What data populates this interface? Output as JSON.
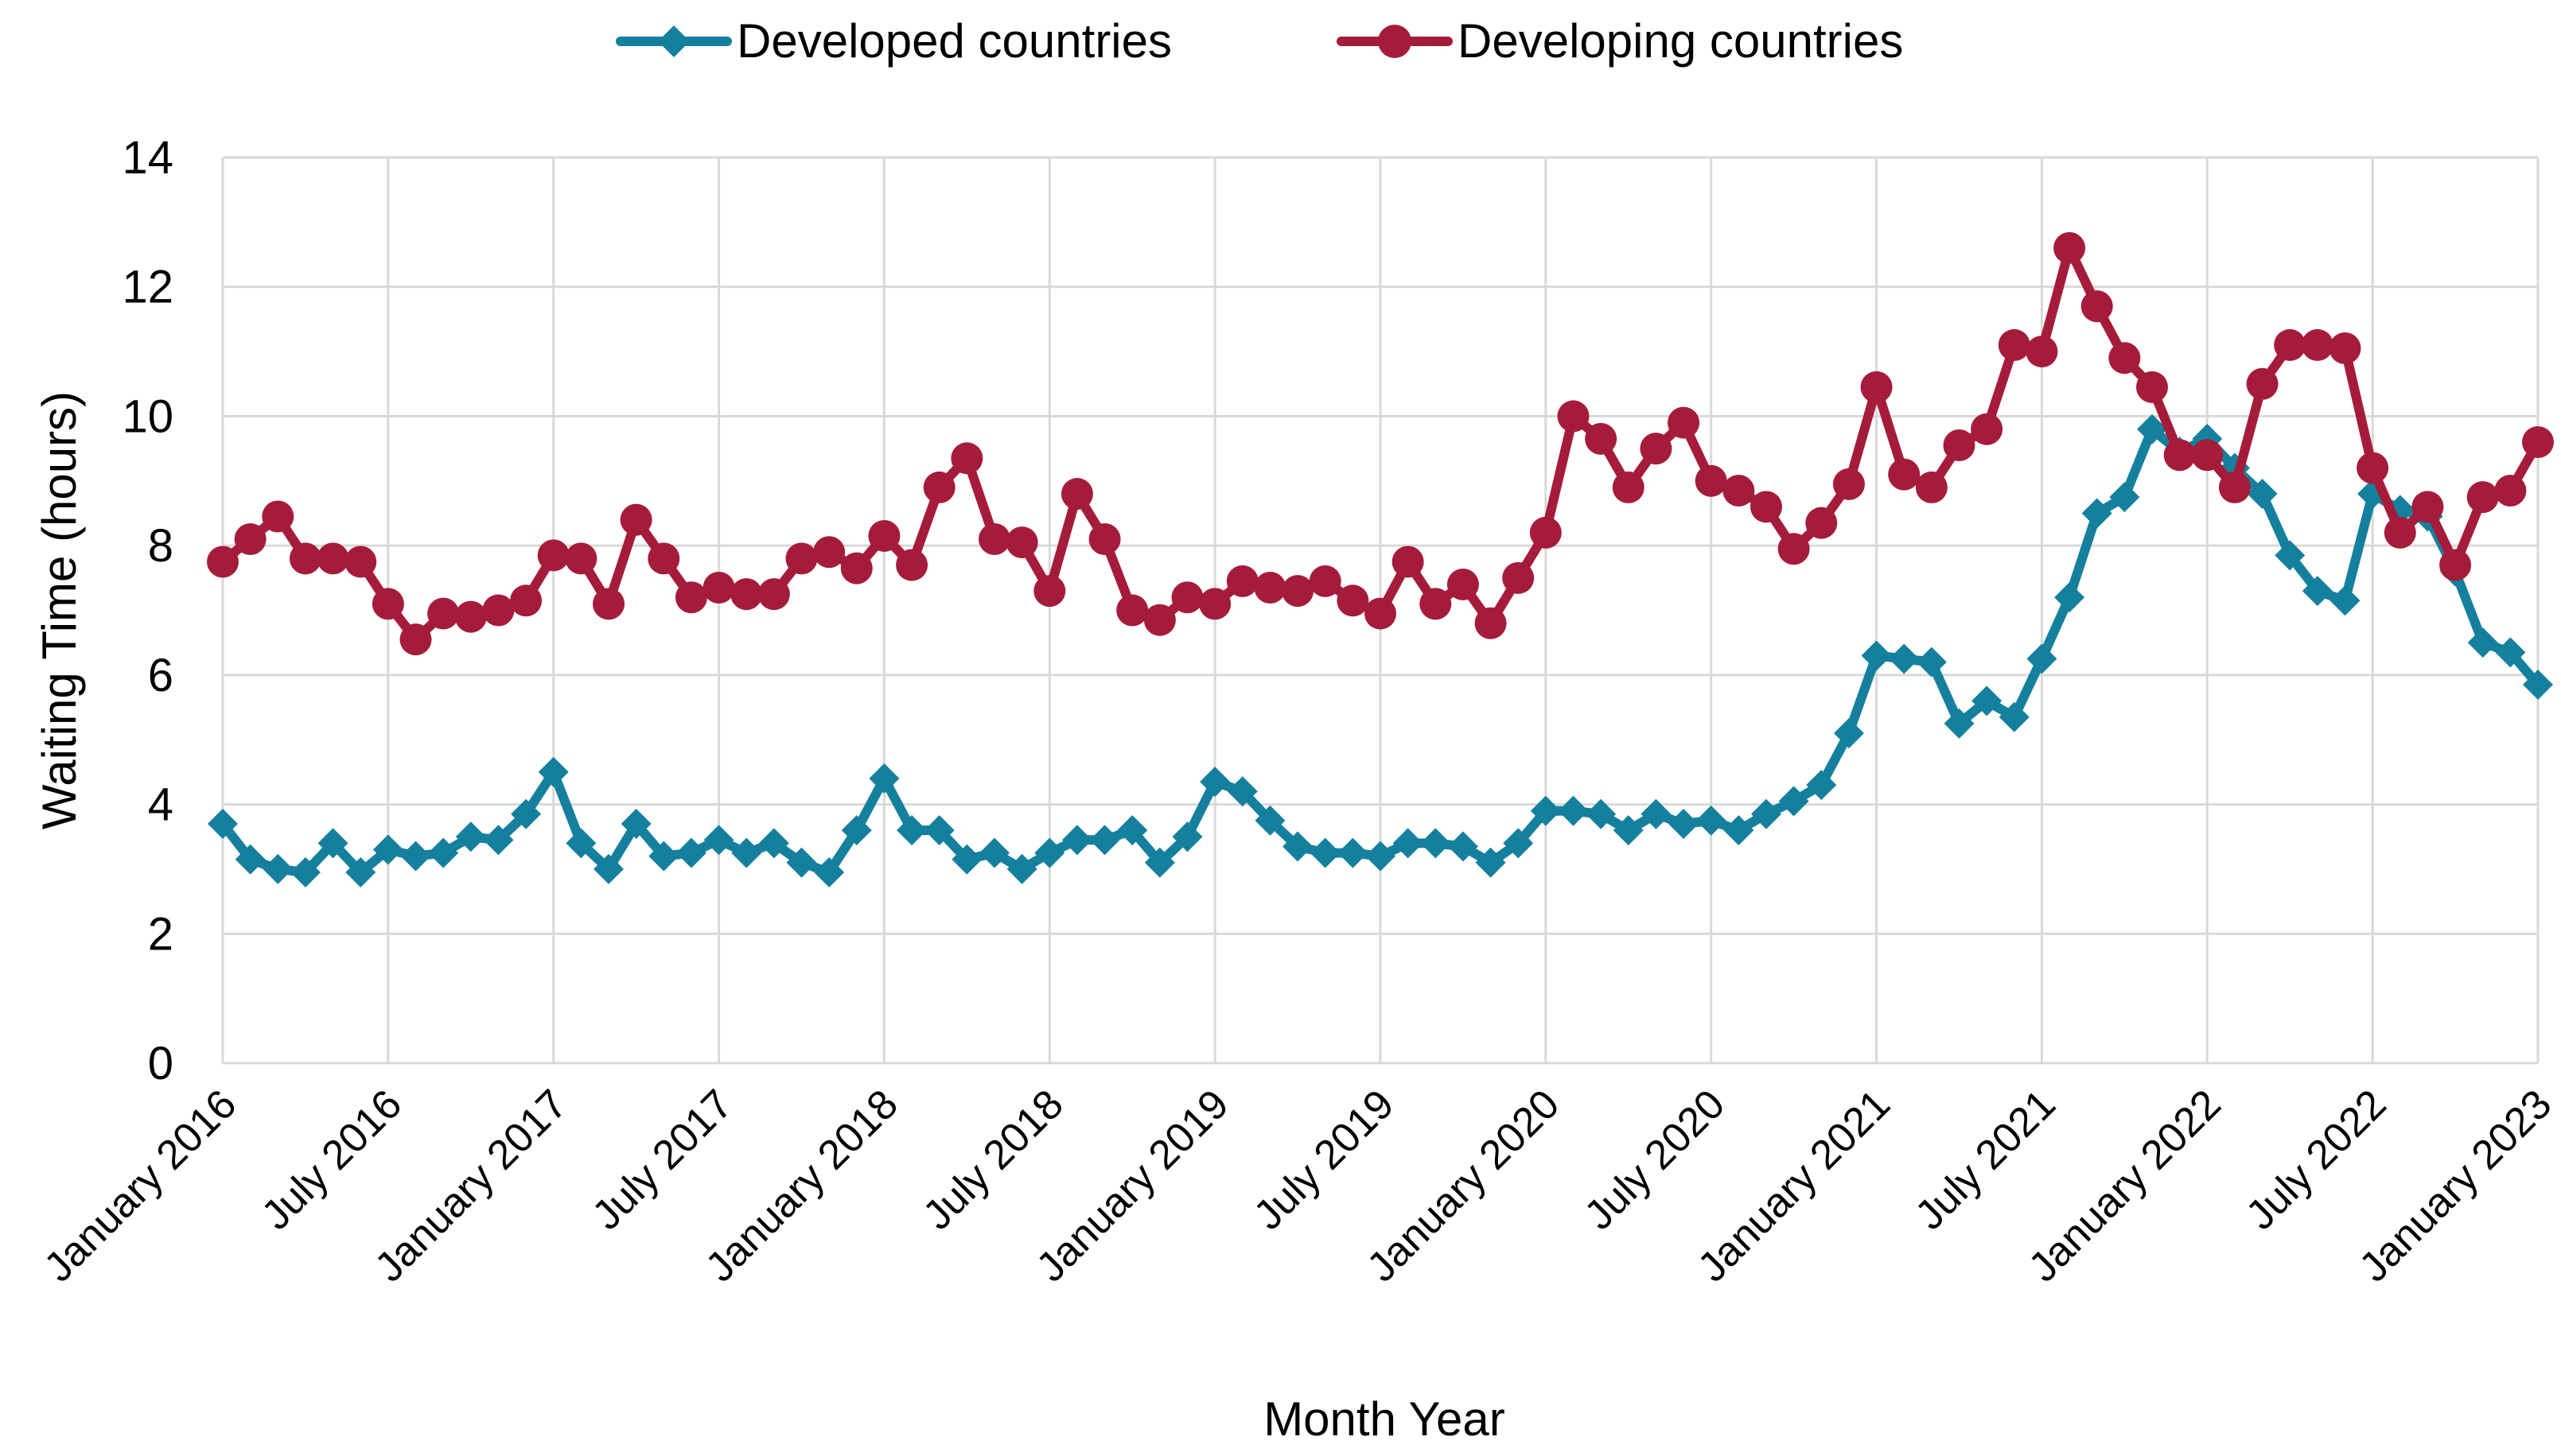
{
  "chart_data": {
    "type": "line",
    "ylabel": "Waiting Time (hours)",
    "xlabel": "Month Year",
    "ylim": [
      0,
      14
    ],
    "yticks": [
      0,
      2,
      4,
      6,
      8,
      10,
      12,
      14
    ],
    "grid": true,
    "legend_placement": "top-center",
    "x_tick_labels": [
      "January 2016",
      "July 2016",
      "January 2017",
      "July 2017",
      "January 2018",
      "July 2018",
      "January 2019",
      "July 2019",
      "January 2020",
      "July 2020",
      "January 2021",
      "July 2021",
      "January 2022",
      "July 2022",
      "January 2023"
    ],
    "series": [
      {
        "name": "Developed countries",
        "color": "#15809d",
        "marker": "diamond",
        "values": [
          3.7,
          3.15,
          3.0,
          2.95,
          3.4,
          2.95,
          3.3,
          3.2,
          3.25,
          3.5,
          3.45,
          3.85,
          4.5,
          3.4,
          3.0,
          3.7,
          3.2,
          3.25,
          3.45,
          3.25,
          3.4,
          3.1,
          2.95,
          3.6,
          4.4,
          3.6,
          3.6,
          3.15,
          3.25,
          3.0,
          3.25,
          3.45,
          3.45,
          3.6,
          3.1,
          3.5,
          4.35,
          4.2,
          3.75,
          3.35,
          3.25,
          3.25,
          3.2,
          3.4,
          3.4,
          3.35,
          3.1,
          3.4,
          3.9,
          3.9,
          3.85,
          3.6,
          3.85,
          3.7,
          3.75,
          3.6,
          3.85,
          4.05,
          4.3,
          5.1,
          6.3,
          6.25,
          6.2,
          5.25,
          5.6,
          5.35,
          6.25,
          7.2,
          8.5,
          8.75,
          9.8,
          9.45,
          9.65,
          9.2,
          8.8,
          7.85,
          7.3,
          7.15,
          8.8,
          8.55,
          8.45,
          7.6,
          6.5,
          6.35,
          5.85
        ]
      },
      {
        "name": "Developing countries",
        "color": "#a51c3a",
        "marker": "circle",
        "values": [
          7.75,
          8.1,
          8.45,
          7.8,
          7.8,
          7.75,
          7.1,
          6.55,
          6.95,
          6.9,
          7.0,
          7.15,
          7.85,
          7.8,
          7.1,
          8.4,
          7.8,
          7.2,
          7.35,
          7.25,
          7.25,
          7.8,
          7.9,
          7.65,
          8.15,
          7.7,
          8.9,
          9.35,
          8.1,
          8.05,
          7.3,
          8.8,
          8.1,
          7.0,
          6.85,
          7.2,
          7.1,
          7.45,
          7.35,
          7.3,
          7.45,
          7.15,
          6.95,
          7.75,
          7.1,
          7.4,
          6.8,
          7.5,
          8.2,
          10.0,
          9.65,
          8.9,
          9.5,
          9.9,
          9.0,
          8.85,
          8.6,
          7.95,
          8.35,
          8.95,
          10.45,
          9.1,
          8.9,
          9.55,
          9.8,
          11.1,
          11.0,
          12.6,
          11.7,
          10.9,
          10.45,
          9.4,
          9.4,
          8.9,
          10.5,
          11.1,
          11.1,
          11.05,
          9.2,
          8.2,
          8.6,
          7.7,
          8.75,
          8.85,
          9.6
        ]
      }
    ]
  }
}
